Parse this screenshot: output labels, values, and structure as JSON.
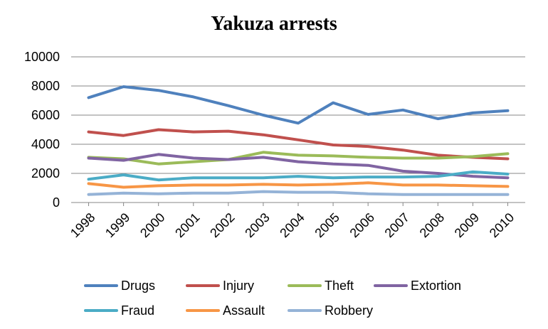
{
  "chart_data": {
    "type": "line",
    "title": "Yakuza arrests",
    "xlabel": "",
    "ylabel": "",
    "ylim": [
      0,
      10000
    ],
    "yticks": [
      0,
      2000,
      4000,
      6000,
      8000,
      10000
    ],
    "grid": "horizontal",
    "legend": "bottom",
    "x": [
      "1998",
      "1999",
      "2000",
      "2001",
      "2002",
      "2003",
      "2004",
      "2005",
      "2006",
      "2007",
      "2008",
      "2009",
      "2010"
    ],
    "series": [
      {
        "name": "Drugs",
        "color": "#4F81BD",
        "values": [
          7200,
          7950,
          7700,
          7250,
          6650,
          6000,
          5450,
          6850,
          6050,
          6350,
          5750,
          6150,
          6300
        ]
      },
      {
        "name": "Injury",
        "color": "#C0504D",
        "values": [
          4850,
          4600,
          5000,
          4850,
          4900,
          4650,
          4300,
          3950,
          3850,
          3600,
          3250,
          3100,
          3000
        ]
      },
      {
        "name": "Theft",
        "color": "#9BBB59",
        "values": [
          3100,
          3000,
          2650,
          2800,
          2950,
          3450,
          3250,
          3200,
          3100,
          3050,
          3050,
          3150,
          3350
        ]
      },
      {
        "name": "Extortion",
        "color": "#8064A2",
        "values": [
          3050,
          2900,
          3300,
          3050,
          2950,
          3100,
          2800,
          2650,
          2550,
          2150,
          2000,
          1800,
          1700
        ]
      },
      {
        "name": "Fraud",
        "color": "#4BACC6",
        "values": [
          1600,
          1900,
          1550,
          1700,
          1700,
          1700,
          1800,
          1700,
          1750,
          1750,
          1800,
          2100,
          1950
        ]
      },
      {
        "name": "Assault",
        "color": "#F79646",
        "values": [
          1300,
          1050,
          1150,
          1200,
          1200,
          1250,
          1200,
          1250,
          1350,
          1200,
          1200,
          1150,
          1100
        ]
      },
      {
        "name": "Robbery",
        "color": "#95B3D7",
        "values": [
          550,
          650,
          600,
          650,
          650,
          750,
          700,
          700,
          600,
          550,
          550,
          550,
          550
        ]
      }
    ]
  }
}
